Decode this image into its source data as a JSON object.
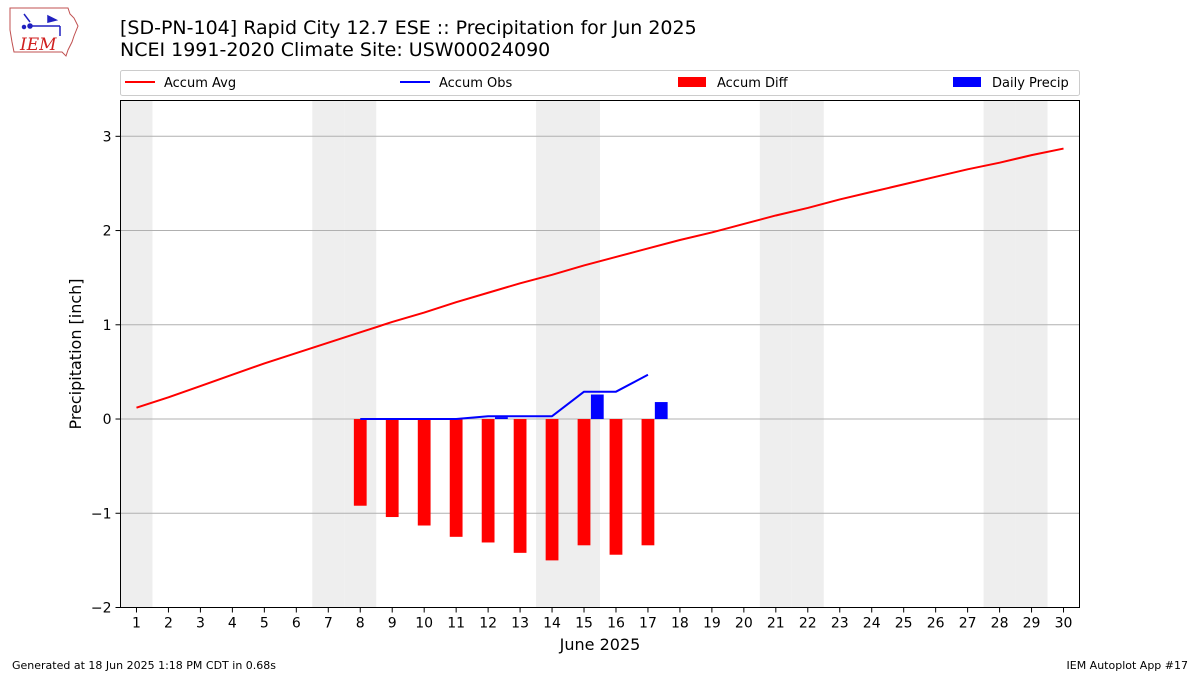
{
  "header": {
    "title_line1": "[SD-PN-104] Rapid City 12.7 ESE :: Precipitation for Jun 2025",
    "title_line2": "NCEI 1991-2020 Climate Site: USW00024090"
  },
  "logo": {
    "text": "IEM",
    "icon": "iowa-state-outline-logo"
  },
  "footer": {
    "left": "Generated at 18 Jun 2025 1:18 PM CDT in 0.68s",
    "right": "IEM Autoplot App #17"
  },
  "colors": {
    "accum_avg": "#ff0000",
    "accum_obs": "#0000ff",
    "accum_diff": "#ff0000",
    "daily_precip": "#0000ff",
    "weekend_shade": "#eeeeee",
    "grid": "#b0b0b0"
  },
  "chart_data": {
    "type": "bar",
    "xlabel": "June 2025",
    "ylabel": "Precipitation [inch]",
    "ylim": [
      -2,
      3.38
    ],
    "yticks": [
      -2,
      -1,
      0,
      1,
      2,
      3
    ],
    "ytick_labels": [
      "−2",
      "−1",
      "0",
      "1",
      "2",
      "3"
    ],
    "xticks": [
      1,
      2,
      3,
      4,
      5,
      6,
      7,
      8,
      9,
      10,
      11,
      12,
      13,
      14,
      15,
      16,
      17,
      18,
      19,
      20,
      21,
      22,
      23,
      24,
      25,
      26,
      27,
      28,
      29,
      30
    ],
    "grid": "horizontal",
    "legend_position": "top, above plot",
    "legend": [
      "Accum Avg",
      "Accum Obs",
      "Accum Diff",
      "Daily Precip"
    ],
    "weekend_days": [
      1,
      7,
      8,
      14,
      15,
      21,
      22,
      28,
      29
    ],
    "series": [
      {
        "name": "Accum Avg",
        "kind": "line",
        "days": [
          1,
          2,
          3,
          4,
          5,
          6,
          7,
          8,
          9,
          10,
          11,
          12,
          13,
          14,
          15,
          16,
          17,
          18,
          19,
          20,
          21,
          22,
          23,
          24,
          25,
          26,
          27,
          28,
          29,
          30
        ],
        "values": [
          0.12,
          0.23,
          0.35,
          0.47,
          0.59,
          0.7,
          0.81,
          0.92,
          1.03,
          1.13,
          1.24,
          1.34,
          1.44,
          1.53,
          1.63,
          1.72,
          1.81,
          1.9,
          1.98,
          2.07,
          2.16,
          2.24,
          2.33,
          2.41,
          2.49,
          2.57,
          2.65,
          2.72,
          2.8,
          2.87
        ]
      },
      {
        "name": "Accum Obs",
        "kind": "line",
        "days": [
          8,
          9,
          10,
          11,
          12,
          13,
          14,
          15,
          16,
          17
        ],
        "values": [
          0.0,
          0.0,
          0.0,
          0.0,
          0.03,
          0.03,
          0.03,
          0.29,
          0.29,
          0.47
        ]
      },
      {
        "name": "Accum Diff",
        "kind": "bar",
        "days": [
          8,
          9,
          10,
          11,
          12,
          13,
          14,
          15,
          16,
          17
        ],
        "values": [
          -0.92,
          -1.04,
          -1.13,
          -1.25,
          -1.31,
          -1.42,
          -1.5,
          -1.34,
          -1.44,
          -1.34
        ]
      },
      {
        "name": "Daily Precip",
        "kind": "bar",
        "days": [
          12,
          15,
          17
        ],
        "values": [
          0.02,
          0.26,
          0.18
        ]
      }
    ]
  }
}
